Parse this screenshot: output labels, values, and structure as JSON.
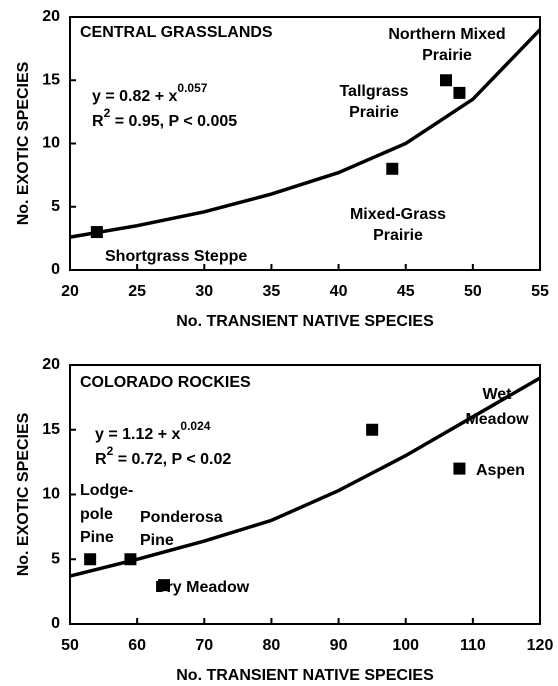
{
  "chart_data": [
    {
      "type": "scatter",
      "title": "CENTRAL GRASSLANDS",
      "equation": {
        "base": "y = 0.82 + x",
        "exponent": "0.057"
      },
      "fit_stats": {
        "symbol": "R",
        "exponent": "2",
        "rest": " = 0.95, P < 0.005"
      },
      "xlabel": "No. TRANSIENT NATIVE SPECIES",
      "ylabel": "No. EXOTIC SPECIES",
      "x": [
        22,
        44,
        49,
        48
      ],
      "values": [
        3,
        8,
        14,
        15
      ],
      "point_labels": [
        [
          "Shortgrass Steppe"
        ],
        [
          "Mixed-Grass",
          "Prairie"
        ],
        [
          "Tallgrass",
          "Prairie"
        ],
        [
          "Northern Mixed",
          "Prairie"
        ]
      ],
      "fit": {
        "x": [
          20,
          25,
          30,
          35,
          40,
          45,
          50,
          55
        ],
        "values": [
          2.6,
          3.5,
          4.6,
          6,
          7.7,
          10,
          13.5,
          19
        ]
      },
      "color": "#000000",
      "xlim": [
        20,
        55
      ],
      "xticks": [
        20,
        25,
        30,
        35,
        40,
        45,
        50,
        55
      ],
      "ylim": [
        0,
        20
      ],
      "yticks": [
        0,
        5,
        10,
        15,
        20
      ]
    },
    {
      "type": "scatter",
      "title": "COLORADO ROCKIES",
      "equation": {
        "base": "y = 1.12 + x",
        "exponent": "0.024"
      },
      "fit_stats": {
        "symbol": "R",
        "exponent": "2",
        "rest": " = 0.72, P < 0.02"
      },
      "xlabel": "No. TRANSIENT NATIVE SPECIES",
      "ylabel": "No. EXOTIC SPECIES",
      "x": [
        53,
        59,
        64,
        95,
        108
      ],
      "values": [
        5,
        5,
        3,
        15,
        12
      ],
      "point_labels": [
        [
          "Lodge-",
          "pole",
          "Pine"
        ],
        [
          "Ponderosa",
          "Pine"
        ],
        [
          "Dry Meadow"
        ],
        [
          "Wet",
          "Meadow"
        ],
        [
          "Aspen"
        ]
      ],
      "fit": {
        "x": [
          50,
          60,
          70,
          80,
          90,
          100,
          110,
          120
        ],
        "values": [
          3.7,
          5,
          6.4,
          8,
          10.3,
          13,
          16,
          19
        ]
      },
      "color": "#000000",
      "xlim": [
        50,
        120
      ],
      "xticks": [
        50,
        60,
        70,
        80,
        90,
        100,
        110,
        120
      ],
      "ylim": [
        0,
        20
      ],
      "yticks": [
        0,
        5,
        10,
        15,
        20
      ]
    }
  ]
}
